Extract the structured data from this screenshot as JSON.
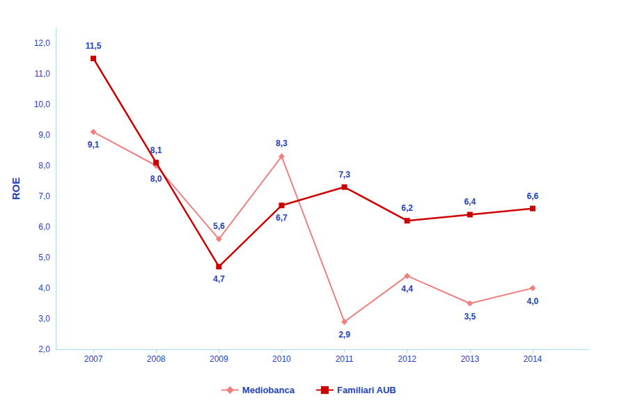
{
  "chart_data": {
    "type": "line",
    "x": [
      2007,
      2008,
      2009,
      2010,
      2011,
      2012,
      2013,
      2014
    ],
    "xlim": [
      2006.4,
      2014.9
    ],
    "xticks": [
      2007,
      2008,
      2009,
      2010,
      2011,
      2012,
      2013,
      2014
    ],
    "ylim": [
      2.0,
      12.5
    ],
    "yticks": [
      {
        "value": 2.0,
        "label": "2,0"
      },
      {
        "value": 3.0,
        "label": "3,0"
      },
      {
        "value": 4.0,
        "label": "4,0"
      },
      {
        "value": 5.0,
        "label": "5,0"
      },
      {
        "value": 6.0,
        "label": "6,0"
      },
      {
        "value": 7.0,
        "label": "7,0"
      },
      {
        "value": 8.0,
        "label": "8,0"
      },
      {
        "value": 9.0,
        "label": "9,0"
      },
      {
        "value": 10.0,
        "label": "10,0"
      },
      {
        "value": 11.0,
        "label": "11,0"
      },
      {
        "value": 12.0,
        "label": "12,0"
      }
    ],
    "ylabel": "ROE",
    "grid": false,
    "legend": "bottom",
    "data_labels": true,
    "series": [
      {
        "name": "Mediobanca",
        "color": "#F08080",
        "marker": "diamond",
        "values": [
          9.1,
          8.0,
          5.6,
          8.3,
          2.9,
          4.4,
          3.5,
          4.0
        ],
        "value_labels": [
          "9,1",
          "8,0",
          "5,6",
          "8,3",
          "2,9",
          "4,4",
          "3,5",
          "4,0"
        ]
      },
      {
        "name": "Familiari AUB",
        "color": "#CC0000",
        "marker": "square",
        "values": [
          11.5,
          8.1,
          4.7,
          6.7,
          7.3,
          6.2,
          6.4,
          6.6
        ],
        "value_labels": [
          "11,5",
          "8,1",
          "4,7",
          "6,7",
          "7,3",
          "6,2",
          "6,4",
          "6,6"
        ]
      }
    ]
  }
}
